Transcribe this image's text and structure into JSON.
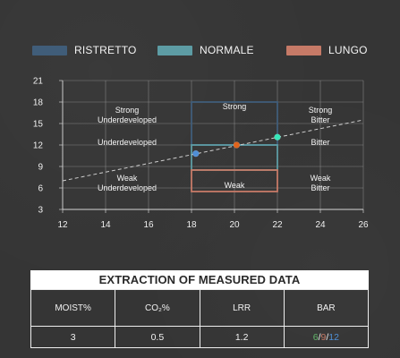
{
  "legend": [
    {
      "label": "RISTRETTO",
      "color": "#405d79"
    },
    {
      "label": "NORMALE",
      "color": "#5d9ca4"
    },
    {
      "label": "LUNGO",
      "color": "#c67a67"
    }
  ],
  "chart_data": {
    "type": "scatter",
    "x_ticks": [
      12,
      14,
      16,
      18,
      20,
      22,
      24,
      26
    ],
    "y_ticks": [
      3,
      6,
      9,
      12,
      15,
      18,
      21
    ],
    "xlim": [
      12,
      26
    ],
    "ylim": [
      3,
      21
    ],
    "grid": true,
    "regions": [
      {
        "name": "RISTRETTO",
        "x": [
          18,
          22
        ],
        "y": [
          12,
          18
        ],
        "color": "#405d79"
      },
      {
        "name": "NORMALE",
        "x": [
          18,
          22
        ],
        "y": [
          8.5,
          12
        ],
        "color": "#5d9ca4"
      },
      {
        "name": "LUNGO",
        "x": [
          18,
          22
        ],
        "y": [
          5.5,
          8.5
        ],
        "color": "#c67a67"
      }
    ],
    "trend_line": {
      "x": [
        12,
        26
      ],
      "y": [
        7,
        15.5
      ]
    },
    "points": [
      {
        "x": 18.2,
        "y": 10.8,
        "color": "#4f8fd6"
      },
      {
        "x": 20.1,
        "y": 12.0,
        "color": "#e0641c"
      },
      {
        "x": 22,
        "y": 13.1,
        "color": "#37e7ba"
      }
    ],
    "annotations": [
      {
        "x": 15,
        "y": 16.5,
        "lines": [
          "Strong",
          "Underdeveloped"
        ]
      },
      {
        "x": 20,
        "y": 17,
        "lines": [
          "Strong"
        ]
      },
      {
        "x": 24,
        "y": 16.5,
        "lines": [
          "Strong",
          "Bitter"
        ]
      },
      {
        "x": 15,
        "y": 12,
        "lines": [
          "Underdeveloped"
        ]
      },
      {
        "x": 24,
        "y": 12,
        "lines": [
          "Bitter"
        ]
      },
      {
        "x": 15,
        "y": 7,
        "lines": [
          "Weak",
          "Underdeveloped"
        ]
      },
      {
        "x": 20,
        "y": 6,
        "lines": [
          "Weak"
        ]
      },
      {
        "x": 24,
        "y": 7,
        "lines": [
          "Weak",
          "Bitter"
        ]
      }
    ]
  },
  "table": {
    "title": "EXTRACTION OF MEASURED DATA",
    "headers": [
      "MOIST%",
      "CO₂%",
      "LRR",
      "BAR"
    ],
    "values": [
      "3",
      "0.5",
      "1.2"
    ],
    "bar_parts": [
      {
        "text": "6",
        "color": "#62b56b"
      },
      {
        "text": "/",
        "color": "#f2f2f2"
      },
      {
        "text": "9",
        "color": "#c67a67"
      },
      {
        "text": "/",
        "color": "#f2f2f2"
      },
      {
        "text": "12",
        "color": "#4f8fd6"
      }
    ]
  }
}
